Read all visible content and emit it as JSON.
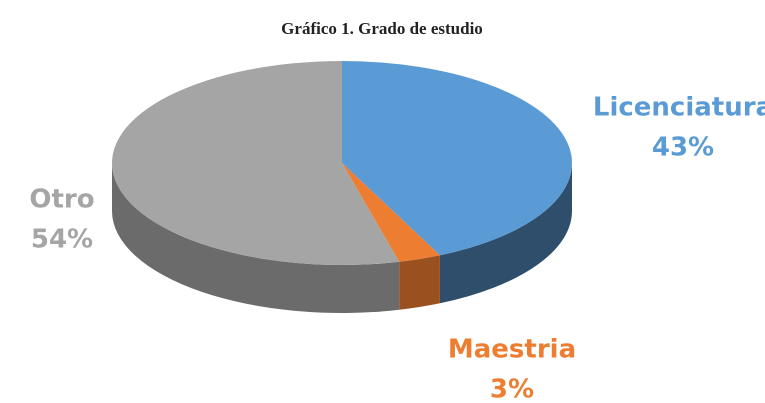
{
  "chart_data": {
    "type": "pie",
    "title": "Gráfico 1. Grado de estudio",
    "categories": [
      "Licenciatura",
      "Maestria",
      "Otro"
    ],
    "values": [
      43,
      3,
      54
    ],
    "value_labels": [
      "43%",
      "3%",
      "54%"
    ],
    "colors": [
      "#5b9bd5",
      "#ed7d31",
      "#a5a5a5"
    ]
  }
}
